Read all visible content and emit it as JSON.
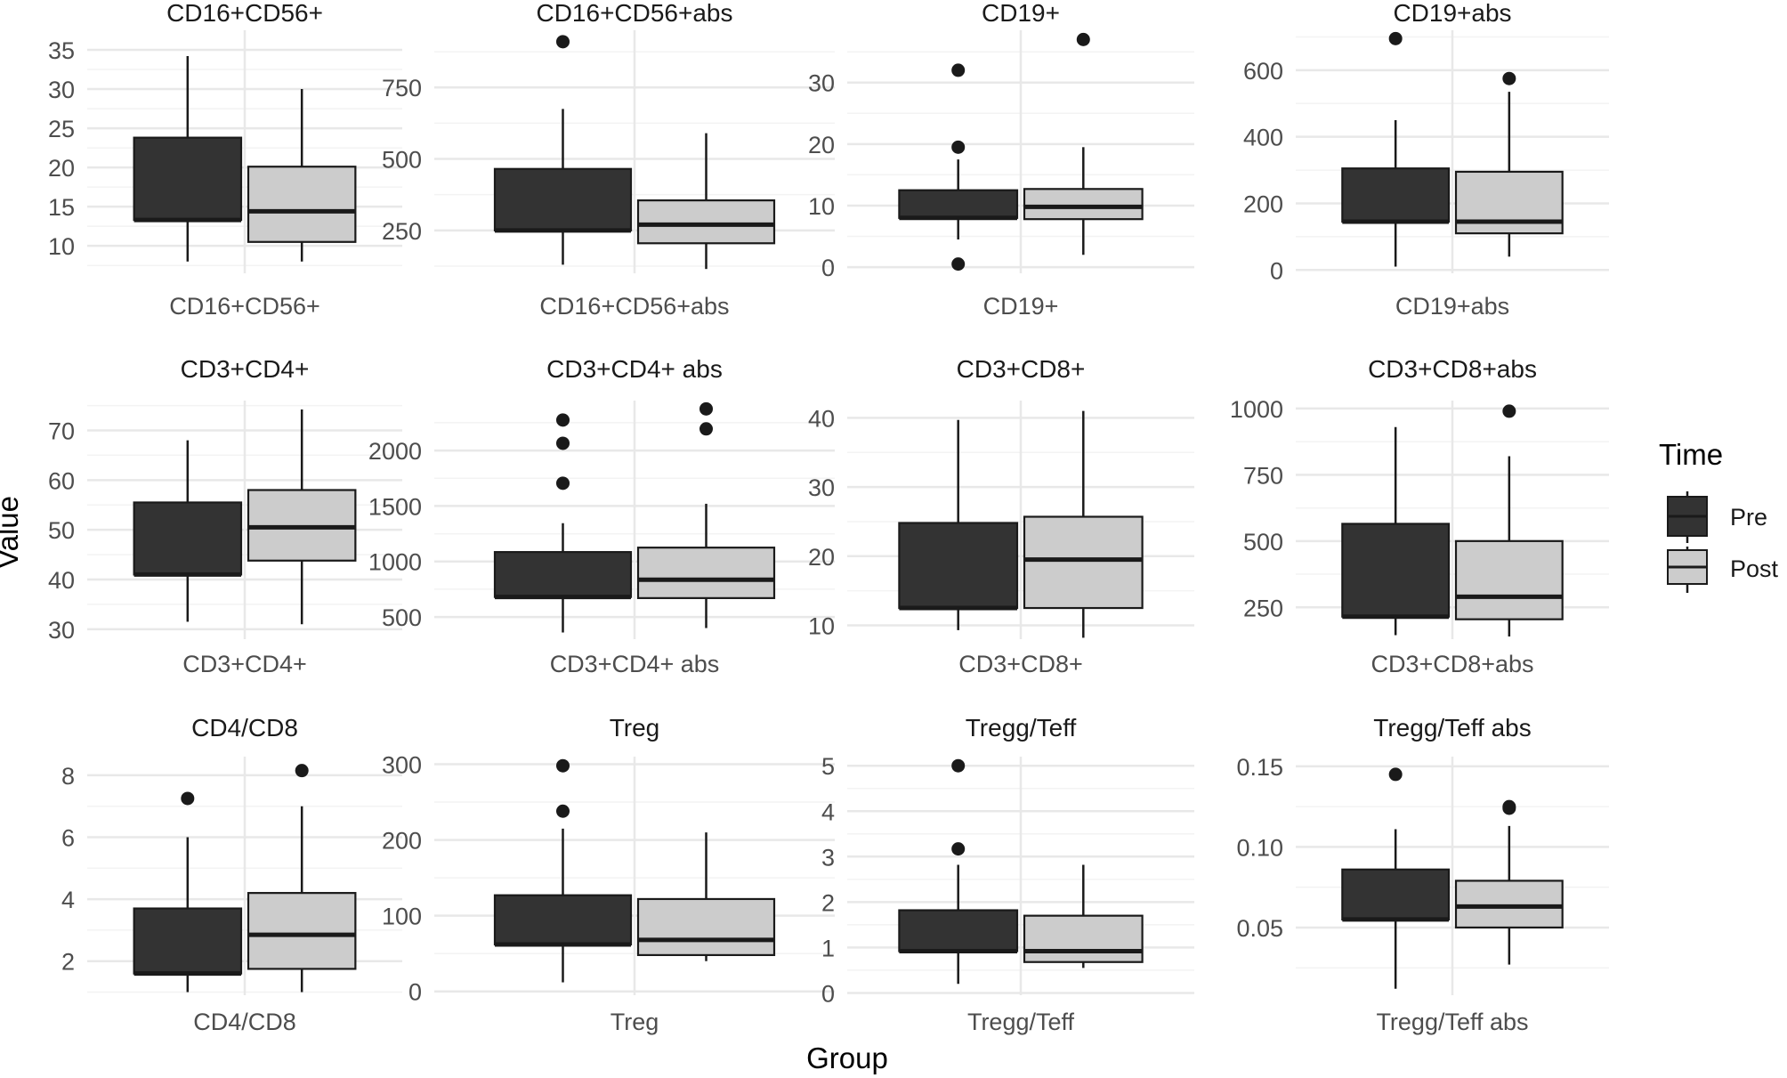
{
  "chart_data": {
    "type": "boxplot",
    "xlabel": "Group",
    "ylabel": "Value",
    "legend": {
      "title": "Time",
      "placement": "right",
      "entries": [
        {
          "label": "Pre",
          "color": "#333333"
        },
        {
          "label": "Post",
          "color": "#cccccc"
        }
      ]
    },
    "colors": {
      "pre_fill": "#333333",
      "post_fill": "#cccccc",
      "line": "#1a1a1a",
      "grid_major": "#e8e8e8",
      "grid_minor": "#f3f3f3"
    },
    "panels": [
      {
        "title": "CD16+CD56+",
        "category": "CD16+CD56+",
        "yticks": [
          10,
          15,
          20,
          25,
          30,
          35
        ],
        "ylim": [
          6.5,
          37.5
        ],
        "boxes": [
          {
            "group": "Pre",
            "lower": 8,
            "q1": 13.3,
            "median": 13.3,
            "q3": 23.8,
            "upper": 34.2,
            "outliers": []
          },
          {
            "group": "Post",
            "lower": 8,
            "q1": 10.5,
            "median": 14.4,
            "q3": 20.1,
            "upper": 30,
            "outliers": []
          }
        ]
      },
      {
        "title": "CD16+CD56+abs",
        "category": "CD16+CD56+abs",
        "yticks": [
          250,
          500,
          750
        ],
        "ylim": [
          100,
          950
        ],
        "boxes": [
          {
            "group": "Pre",
            "lower": 130,
            "q1": 250,
            "median": 250,
            "q3": 465,
            "upper": 675,
            "outliers": [
              910
            ]
          },
          {
            "group": "Post",
            "lower": 115,
            "q1": 205,
            "median": 270,
            "q3": 355,
            "upper": 590,
            "outliers": []
          }
        ]
      },
      {
        "title": "CD19+",
        "category": "CD19+",
        "yticks": [
          0,
          10,
          20,
          30
        ],
        "ylim": [
          -1,
          38.5
        ],
        "boxes": [
          {
            "group": "Pre",
            "lower": 4.5,
            "q1": 8,
            "median": 8,
            "q3": 12.5,
            "upper": 17.5,
            "outliers": [
              0.5,
              19.5,
              32
            ]
          },
          {
            "group": "Post",
            "lower": 2,
            "q1": 7.8,
            "median": 9.8,
            "q3": 12.7,
            "upper": 19.5,
            "outliers": [
              37
            ]
          }
        ]
      },
      {
        "title": "CD19+abs",
        "category": "CD19+abs",
        "yticks": [
          0,
          200,
          400,
          600
        ],
        "ylim": [
          -10,
          720
        ],
        "boxes": [
          {
            "group": "Pre",
            "lower": 10,
            "q1": 145,
            "median": 145,
            "q3": 305,
            "upper": 450,
            "outliers": [
              695
            ]
          },
          {
            "group": "Post",
            "lower": 40,
            "q1": 110,
            "median": 145,
            "q3": 295,
            "upper": 535,
            "outliers": [
              575
            ]
          }
        ]
      },
      {
        "title": "CD3+CD4+",
        "category": "CD3+CD4+",
        "yticks": [
          30,
          40,
          50,
          60,
          70
        ],
        "ylim": [
          28,
          76
        ],
        "boxes": [
          {
            "group": "Pre",
            "lower": 31.5,
            "q1": 41,
            "median": 41,
            "q3": 55.5,
            "upper": 68,
            "outliers": []
          },
          {
            "group": "Post",
            "lower": 31,
            "q1": 43.8,
            "median": 50.5,
            "q3": 58,
            "upper": 74.2,
            "outliers": []
          }
        ]
      },
      {
        "title": "CD3+CD4+ abs",
        "category": "CD3+CD4+ abs",
        "yticks": [
          500,
          1000,
          1500,
          2000
        ],
        "ylim": [
          300,
          2450
        ],
        "boxes": [
          {
            "group": "Pre",
            "lower": 360,
            "q1": 680,
            "median": 680,
            "q3": 1085,
            "upper": 1345,
            "outliers": [
              1705,
              2065,
              2275
            ]
          },
          {
            "group": "Post",
            "lower": 400,
            "q1": 670,
            "median": 835,
            "q3": 1125,
            "upper": 1520,
            "outliers": [
              2195,
              2375
            ]
          }
        ]
      },
      {
        "title": "CD3+CD8+",
        "category": "CD3+CD8+",
        "yticks": [
          10,
          20,
          30,
          40
        ],
        "ylim": [
          8,
          42.5
        ],
        "boxes": [
          {
            "group": "Pre",
            "lower": 9.3,
            "q1": 12.5,
            "median": 12.5,
            "q3": 24.8,
            "upper": 39.7,
            "outliers": []
          },
          {
            "group": "Post",
            "lower": 8.2,
            "q1": 12.5,
            "median": 19.5,
            "q3": 25.7,
            "upper": 41,
            "outliers": []
          }
        ]
      },
      {
        "title": "CD3+CD8+abs",
        "category": "CD3+CD8+abs",
        "yticks": [
          250,
          500,
          750,
          1000
        ],
        "ylim": [
          130,
          1030
        ],
        "boxes": [
          {
            "group": "Pre",
            "lower": 145,
            "q1": 215,
            "median": 215,
            "q3": 565,
            "upper": 930,
            "outliers": []
          },
          {
            "group": "Post",
            "lower": 140,
            "q1": 205,
            "median": 290,
            "q3": 500,
            "upper": 820,
            "outliers": [
              990
            ]
          }
        ]
      },
      {
        "title": "CD4/CD8",
        "category": "CD4/CD8",
        "yticks": [
          2,
          4,
          6,
          8
        ],
        "ylim": [
          0.9,
          8.6
        ],
        "boxes": [
          {
            "group": "Pre",
            "lower": 1,
            "q1": 1.6,
            "median": 1.6,
            "q3": 3.7,
            "upper": 6,
            "outliers": [
              7.25
            ]
          },
          {
            "group": "Post",
            "lower": 1,
            "q1": 1.75,
            "median": 2.85,
            "q3": 4.2,
            "upper": 7,
            "outliers": [
              8.15
            ]
          }
        ]
      },
      {
        "title": "Treg",
        "category": "Treg",
        "yticks": [
          0,
          100,
          200,
          300
        ],
        "ylim": [
          -5,
          310
        ],
        "boxes": [
          {
            "group": "Pre",
            "lower": 12,
            "q1": 62,
            "median": 62,
            "q3": 127,
            "upper": 215,
            "outliers": [
              238,
              298
            ]
          },
          {
            "group": "Post",
            "lower": 40,
            "q1": 48,
            "median": 68,
            "q3": 122,
            "upper": 210,
            "outliers": []
          }
        ]
      },
      {
        "title": "Tregg/Teff",
        "category": "Tregg/Teff",
        "yticks": [
          0,
          1,
          2,
          3,
          4,
          5
        ],
        "ylim": [
          -0.05,
          5.2
        ],
        "boxes": [
          {
            "group": "Pre",
            "lower": 0.2,
            "q1": 0.92,
            "median": 0.92,
            "q3": 1.82,
            "upper": 2.82,
            "outliers": [
              3.17,
              5
            ]
          },
          {
            "group": "Post",
            "lower": 0.55,
            "q1": 0.68,
            "median": 0.92,
            "q3": 1.7,
            "upper": 2.82,
            "outliers": []
          }
        ]
      },
      {
        "title": "Tregg/Teff abs",
        "category": "Tregg/Teff abs",
        "yticks": [
          0.05,
          0.1,
          0.15
        ],
        "ylim": [
          0.008,
          0.156
        ],
        "boxes": [
          {
            "group": "Pre",
            "lower": 0.012,
            "q1": 0.055,
            "median": 0.055,
            "q3": 0.086,
            "upper": 0.111,
            "outliers": [
              0.145
            ]
          },
          {
            "group": "Post",
            "lower": 0.027,
            "q1": 0.05,
            "median": 0.063,
            "q3": 0.079,
            "upper": 0.113,
            "outliers": [
              0.124,
              0.125
            ]
          }
        ]
      }
    ]
  }
}
